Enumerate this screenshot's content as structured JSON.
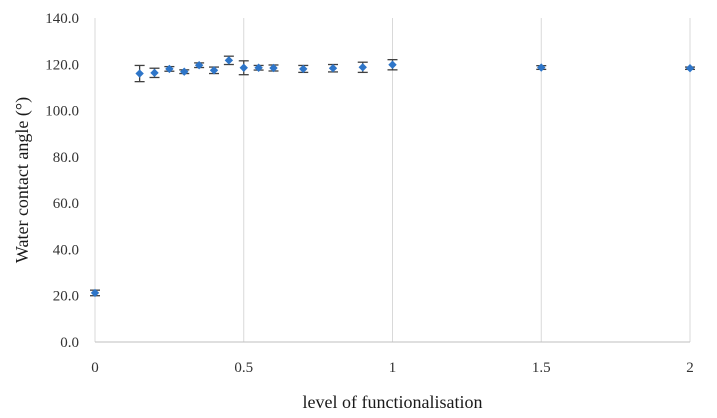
{
  "chart_data": {
    "type": "scatter",
    "xlabel": "level of functionalisation",
    "ylabel": "Water contact angle (°)",
    "xlim": [
      0,
      2
    ],
    "ylim": [
      0,
      140
    ],
    "x_ticks": [
      0,
      0.5,
      1,
      1.5,
      2
    ],
    "x_tick_labels": [
      "0",
      "0.5",
      "1",
      "1.5",
      "2"
    ],
    "y_ticks": [
      0,
      20,
      40,
      60,
      80,
      100,
      120,
      140
    ],
    "y_tick_labels": [
      "0.0",
      "20.0",
      "40.0",
      "60.0",
      "80.0",
      "100.0",
      "120.0",
      "140.0"
    ],
    "grid": "vertical",
    "legend": "none",
    "marker_color": "#2e75c8",
    "error_bar_color": "#404040",
    "points": [
      {
        "x": 0,
        "y": 21.2,
        "err": 1.2
      },
      {
        "x": 0.15,
        "y": 116.0,
        "err": 3.5
      },
      {
        "x": 0.2,
        "y": 116.3,
        "err": 2.0
      },
      {
        "x": 0.25,
        "y": 118.0,
        "err": 1.0
      },
      {
        "x": 0.3,
        "y": 116.8,
        "err": 0.8
      },
      {
        "x": 0.35,
        "y": 119.6,
        "err": 1.0
      },
      {
        "x": 0.4,
        "y": 117.4,
        "err": 1.4
      },
      {
        "x": 0.45,
        "y": 121.7,
        "err": 1.8
      },
      {
        "x": 0.5,
        "y": 118.5,
        "err": 3.0
      },
      {
        "x": 0.55,
        "y": 118.5,
        "err": 1.0
      },
      {
        "x": 0.6,
        "y": 118.4,
        "err": 1.3
      },
      {
        "x": 0.7,
        "y": 118.0,
        "err": 1.5
      },
      {
        "x": 0.8,
        "y": 118.3,
        "err": 1.6
      },
      {
        "x": 0.9,
        "y": 118.7,
        "err": 2.2
      },
      {
        "x": 1,
        "y": 119.8,
        "err": 2.2
      },
      {
        "x": 1.5,
        "y": 118.6,
        "err": 0.8
      },
      {
        "x": 2,
        "y": 118.3,
        "err": 0.5
      }
    ]
  }
}
